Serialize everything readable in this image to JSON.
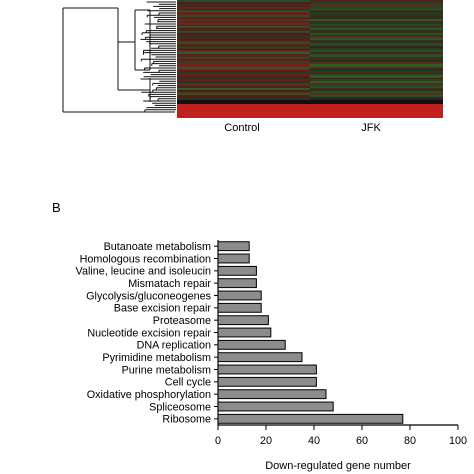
{
  "panel_a": {
    "column_labels": [
      "Control",
      "JFK"
    ],
    "colors": {
      "high": "#c0201e",
      "low": "#2e9a2a",
      "neutral": "#1a1a1a"
    }
  },
  "panel_b": {
    "label": "B"
  },
  "chart_data": [
    {
      "type": "heatmap",
      "title": "",
      "columns": [
        "Control",
        "JFK"
      ],
      "rows_note": "",
      "colors": {
        "high": "#c0201e",
        "low": "#2e9a2a"
      }
    },
    {
      "type": "bar",
      "orientation": "horizontal",
      "title": "",
      "categories": [
        "Butanoate metabolism",
        "Homologous recombination",
        "Valine, leucine and isoleucin",
        "Mismatach repair",
        "Glycolysis/gluconeogenes",
        "Base excision repair",
        "Proteasome",
        "Nucleotide excision repair",
        "DNA replication",
        "Pyrimidine metabolism",
        "Purine metabolism",
        "Cell cycle",
        "Oxidative phosphorylation",
        "Spliceosome",
        "Ribosome"
      ],
      "values": [
        13,
        13,
        16,
        16,
        18,
        18,
        21,
        22,
        28,
        35,
        41,
        41,
        45,
        48,
        77
      ],
      "xlabel": "Down-regulated gene number",
      "ylabel": "",
      "xlim": [
        0,
        100
      ],
      "xticks": [
        0,
        20,
        40,
        60,
        80,
        100
      ],
      "bar_color": "#8c8c8c",
      "grid": false
    }
  ]
}
